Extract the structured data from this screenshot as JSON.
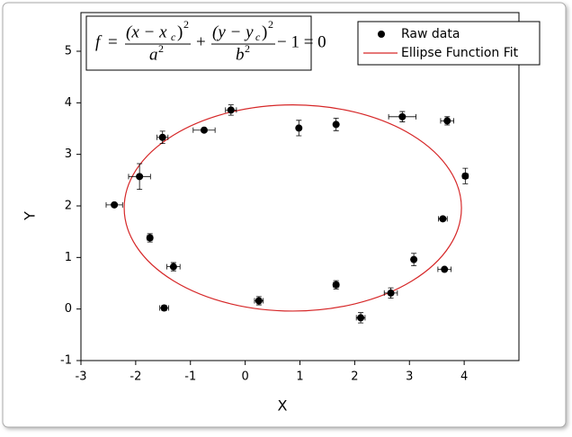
{
  "chart_data": {
    "type": "scatter",
    "xlabel": "X",
    "ylabel": "Y",
    "xlim": [
      -3,
      5
    ],
    "ylim": [
      -1,
      5.75
    ],
    "xticks": [
      -3,
      -2,
      -1,
      0,
      1,
      2,
      3,
      4
    ],
    "yticks": [
      -1,
      0,
      1,
      2,
      3,
      4,
      5
    ],
    "series": [
      {
        "name": "Raw data",
        "color": "#000000",
        "x": [
          -2.39,
          -1.93,
          -1.51,
          -1.74,
          -1.31,
          -1.48,
          -0.75,
          -0.26,
          0.25,
          0.98,
          1.66,
          1.66,
          2.11,
          2.66,
          2.87,
          3.08,
          3.61,
          3.64,
          3.69,
          4.02
        ],
        "values": [
          2.02,
          2.57,
          3.33,
          1.38,
          0.82,
          0.02,
          3.47,
          3.86,
          0.16,
          3.51,
          3.58,
          0.47,
          -0.17,
          0.31,
          3.73,
          0.96,
          1.75,
          0.77,
          3.65,
          2.58
        ],
        "xerr": [
          0.15,
          0.2,
          0.1,
          0.05,
          0.12,
          0.08,
          0.2,
          0.1,
          0.08,
          0.03,
          0.03,
          0.05,
          0.08,
          0.12,
          0.25,
          0.03,
          0.08,
          0.12,
          0.12,
          0.05
        ],
        "yerr": [
          0.03,
          0.25,
          0.12,
          0.08,
          0.08,
          0.05,
          0.03,
          0.1,
          0.08,
          0.15,
          0.12,
          0.08,
          0.1,
          0.1,
          0.1,
          0.12,
          0.03,
          0.03,
          0.08,
          0.15
        ]
      }
    ],
    "fit": {
      "name": "Ellipse Function Fit",
      "color": "#d62728",
      "xc": 0.87,
      "yc": 1.96,
      "a": 3.08,
      "b": 2.0
    },
    "formula": {
      "f": "f",
      "eq": "=",
      "num1": "(x − x",
      "sub1": "c",
      "close1": ")",
      "sup1": "2",
      "den1": "a",
      "densup1": "2",
      "plus": "+",
      "num2": "(y − y",
      "sub2": "c",
      "close2": ")",
      "sup2": "2",
      "den2": "b",
      "densup2": "2",
      "tail": "− 1 = 0"
    }
  }
}
